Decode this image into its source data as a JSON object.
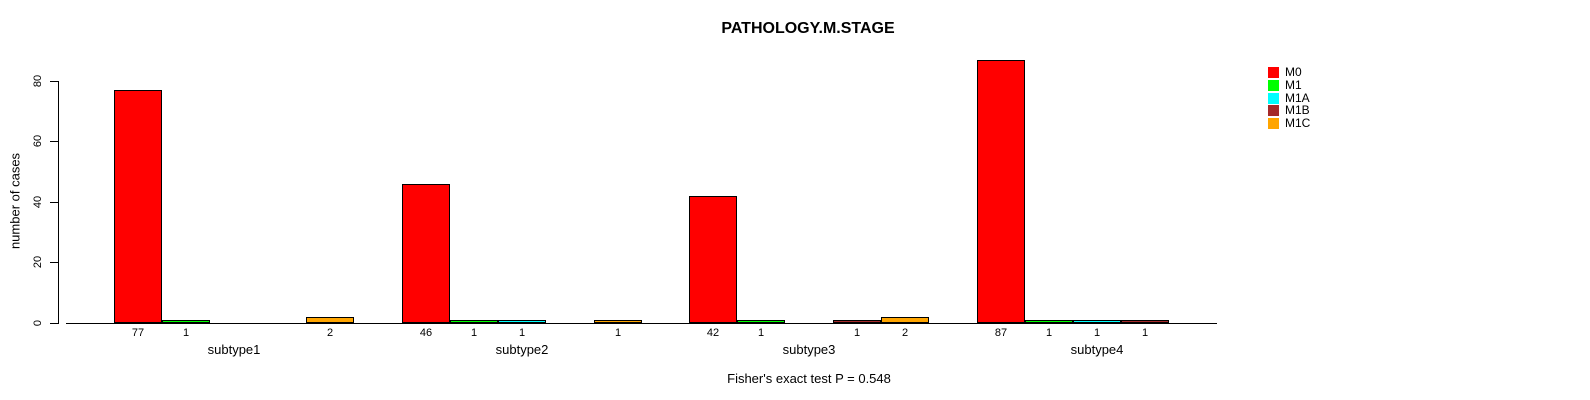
{
  "chart_data": {
    "type": "bar",
    "title": "PATHOLOGY.M.STAGE",
    "ylabel": "number of cases",
    "xlabel": "",
    "annotation": "Fisher's exact test P = 0.548",
    "categories": [
      "subtype1",
      "subtype2",
      "subtype3",
      "subtype4"
    ],
    "series": [
      {
        "name": "M0",
        "color": "#FF0000",
        "values": [
          77,
          46,
          42,
          87
        ]
      },
      {
        "name": "M1",
        "color": "#00FF00",
        "values": [
          1,
          1,
          1,
          1
        ]
      },
      {
        "name": "M1A",
        "color": "#00FFFF",
        "values": [
          0,
          1,
          0,
          1
        ]
      },
      {
        "name": "M1B",
        "color": "#A52A2A",
        "values": [
          0,
          0,
          1,
          1
        ]
      },
      {
        "name": "M1C",
        "color": "#FFA500",
        "values": [
          2,
          1,
          2,
          0
        ]
      }
    ],
    "ylim": [
      0,
      80
    ],
    "yticks": [
      0,
      20,
      40,
      60,
      80
    ],
    "legend_position": "right",
    "grid": false,
    "bar_value_labels": "nonzero values shown under bars",
    "axis_color": "#000000",
    "background_color": "#FFFFFF"
  }
}
